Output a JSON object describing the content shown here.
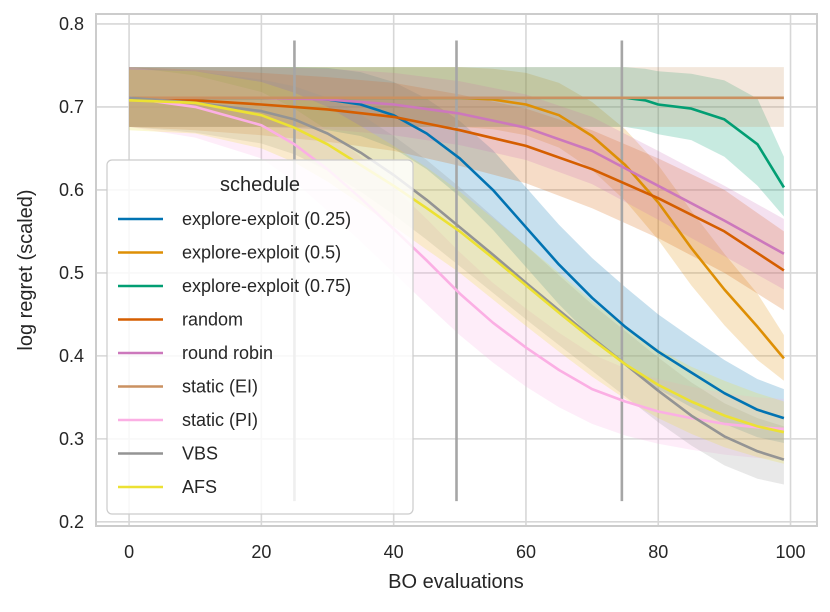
{
  "chart_data": {
    "type": "line",
    "xlabel": "BO evaluations",
    "ylabel": "log regret (scaled)",
    "xlim": [
      -5,
      104
    ],
    "ylim": [
      0.195,
      0.812
    ],
    "xticks": [
      0,
      20,
      40,
      60,
      80,
      100
    ],
    "xtick_labels": [
      "0",
      "20",
      "40",
      "60",
      "80",
      "100"
    ],
    "yticks": [
      0.2,
      0.3,
      0.4,
      0.5,
      0.6,
      0.7,
      0.8
    ],
    "ytick_labels": [
      "0.2",
      "0.3",
      "0.4",
      "0.5",
      "0.6",
      "0.7",
      "0.8"
    ],
    "grid": true,
    "legend": {
      "title": "schedule",
      "position": "lower-left"
    },
    "vlines": [
      {
        "x": 25,
        "ymin": 0.225,
        "ymax": 0.78
      },
      {
        "x": 49.5,
        "ymin": 0.225,
        "ymax": 0.78
      },
      {
        "x": 74.5,
        "ymin": 0.225,
        "ymax": 0.78
      }
    ],
    "series": [
      {
        "name": "explore-exploit (0.25)",
        "color": "#0173b2",
        "x": [
          0,
          10,
          20,
          25,
          30,
          35,
          40,
          45,
          50,
          55,
          60,
          65,
          70,
          75,
          80,
          85,
          90,
          95,
          99
        ],
        "y": [
          0.711,
          0.711,
          0.711,
          0.711,
          0.709,
          0.703,
          0.69,
          0.668,
          0.638,
          0.6,
          0.555,
          0.51,
          0.47,
          0.435,
          0.405,
          0.38,
          0.355,
          0.335,
          0.325
        ],
        "lower": [
          0.676,
          0.676,
          0.676,
          0.675,
          0.672,
          0.665,
          0.65,
          0.625,
          0.592,
          0.552,
          0.507,
          0.462,
          0.422,
          0.388,
          0.36,
          0.338,
          0.318,
          0.302,
          0.295
        ],
        "upper": [
          0.748,
          0.748,
          0.748,
          0.748,
          0.747,
          0.742,
          0.73,
          0.71,
          0.683,
          0.648,
          0.603,
          0.558,
          0.518,
          0.483,
          0.45,
          0.422,
          0.395,
          0.372,
          0.36
        ]
      },
      {
        "name": "explore-exploit (0.5)",
        "color": "#de8f05",
        "x": [
          0,
          10,
          20,
          30,
          40,
          50,
          55,
          60,
          65,
          70,
          75,
          80,
          85,
          90,
          95,
          99
        ],
        "y": [
          0.711,
          0.711,
          0.711,
          0.711,
          0.711,
          0.711,
          0.709,
          0.703,
          0.69,
          0.665,
          0.63,
          0.585,
          0.53,
          0.48,
          0.435,
          0.397
        ],
        "lower": [
          0.676,
          0.676,
          0.676,
          0.676,
          0.676,
          0.676,
          0.673,
          0.666,
          0.651,
          0.624,
          0.587,
          0.54,
          0.485,
          0.437,
          0.395,
          0.37
        ],
        "upper": [
          0.748,
          0.748,
          0.748,
          0.748,
          0.748,
          0.748,
          0.746,
          0.741,
          0.729,
          0.706,
          0.673,
          0.63,
          0.575,
          0.523,
          0.475,
          0.425
        ]
      },
      {
        "name": "explore-exploit (0.75)",
        "color": "#029e73",
        "x": [
          0,
          20,
          40,
          60,
          75,
          78,
          80,
          85,
          90,
          95,
          99
        ],
        "y": [
          0.711,
          0.711,
          0.711,
          0.711,
          0.711,
          0.708,
          0.703,
          0.698,
          0.685,
          0.655,
          0.603
        ],
        "lower": [
          0.676,
          0.676,
          0.676,
          0.676,
          0.676,
          0.672,
          0.667,
          0.66,
          0.64,
          0.605,
          0.568
        ],
        "upper": [
          0.748,
          0.748,
          0.748,
          0.748,
          0.748,
          0.746,
          0.743,
          0.74,
          0.732,
          0.71,
          0.64
        ]
      },
      {
        "name": "random",
        "color": "#d55e00",
        "x": [
          0,
          10,
          20,
          30,
          40,
          50,
          60,
          70,
          80,
          90,
          99
        ],
        "y": [
          0.711,
          0.708,
          0.703,
          0.697,
          0.688,
          0.672,
          0.653,
          0.625,
          0.59,
          0.55,
          0.503
        ],
        "lower": [
          0.676,
          0.672,
          0.666,
          0.658,
          0.647,
          0.629,
          0.608,
          0.578,
          0.542,
          0.5,
          0.455
        ],
        "upper": [
          0.748,
          0.745,
          0.741,
          0.736,
          0.729,
          0.715,
          0.698,
          0.672,
          0.638,
          0.6,
          0.55
        ]
      },
      {
        "name": "round robin",
        "color": "#cc78bc",
        "x": [
          0,
          10,
          20,
          30,
          40,
          50,
          60,
          70,
          80,
          90,
          99
        ],
        "y": [
          0.711,
          0.711,
          0.711,
          0.709,
          0.703,
          0.692,
          0.675,
          0.647,
          0.605,
          0.563,
          0.523
        ],
        "lower": [
          0.676,
          0.676,
          0.676,
          0.673,
          0.666,
          0.654,
          0.636,
          0.607,
          0.564,
          0.52,
          0.48
        ],
        "upper": [
          0.748,
          0.748,
          0.748,
          0.746,
          0.741,
          0.731,
          0.715,
          0.688,
          0.647,
          0.605,
          0.565
        ]
      },
      {
        "name": "static (EI)",
        "color": "#ca9161",
        "x": [
          0,
          99
        ],
        "y": [
          0.711,
          0.711
        ],
        "lower": [
          0.676,
          0.676
        ],
        "upper": [
          0.748,
          0.748
        ]
      },
      {
        "name": "static (PI)",
        "color": "#fbafe4",
        "x": [
          0,
          10,
          20,
          25,
          30,
          35,
          40,
          45,
          50,
          55,
          60,
          65,
          70,
          75,
          80,
          85,
          90,
          95,
          99
        ],
        "y": [
          0.711,
          0.7,
          0.678,
          0.655,
          0.625,
          0.59,
          0.553,
          0.515,
          0.475,
          0.44,
          0.41,
          0.383,
          0.36,
          0.345,
          0.333,
          0.325,
          0.318,
          0.314,
          0.312
        ],
        "lower": [
          0.676,
          0.663,
          0.638,
          0.61,
          0.575,
          0.538,
          0.5,
          0.462,
          0.425,
          0.392,
          0.363,
          0.338,
          0.318,
          0.304,
          0.294,
          0.287,
          0.281,
          0.277,
          0.275
        ],
        "upper": [
          0.748,
          0.738,
          0.718,
          0.698,
          0.672,
          0.64,
          0.603,
          0.565,
          0.525,
          0.488,
          0.457,
          0.428,
          0.402,
          0.385,
          0.372,
          0.363,
          0.355,
          0.35,
          0.348
        ]
      },
      {
        "name": "VBS",
        "color": "#949494",
        "x": [
          0,
          10,
          20,
          25,
          30,
          35,
          40,
          45,
          50,
          55,
          60,
          65,
          70,
          75,
          80,
          85,
          90,
          95,
          99
        ],
        "y": [
          0.711,
          0.705,
          0.695,
          0.685,
          0.668,
          0.645,
          0.618,
          0.588,
          0.555,
          0.522,
          0.488,
          0.455,
          0.422,
          0.39,
          0.358,
          0.328,
          0.303,
          0.285,
          0.275
        ],
        "lower": [
          0.676,
          0.669,
          0.656,
          0.643,
          0.623,
          0.598,
          0.57,
          0.54,
          0.508,
          0.476,
          0.444,
          0.413,
          0.382,
          0.351,
          0.32,
          0.292,
          0.268,
          0.252,
          0.245
        ],
        "upper": [
          0.748,
          0.743,
          0.733,
          0.725,
          0.711,
          0.691,
          0.665,
          0.636,
          0.603,
          0.568,
          0.533,
          0.497,
          0.462,
          0.43,
          0.398,
          0.368,
          0.343,
          0.325,
          0.315
        ]
      },
      {
        "name": "AFS",
        "color": "#ece133",
        "x": [
          0,
          10,
          20,
          25,
          30,
          35,
          40,
          45,
          50,
          55,
          60,
          65,
          70,
          75,
          80,
          85,
          90,
          95,
          99
        ],
        "y": [
          0.708,
          0.705,
          0.69,
          0.675,
          0.655,
          0.63,
          0.605,
          0.578,
          0.55,
          0.518,
          0.485,
          0.452,
          0.42,
          0.39,
          0.365,
          0.345,
          0.328,
          0.315,
          0.308
        ],
        "lower": [
          0.672,
          0.668,
          0.65,
          0.633,
          0.61,
          0.583,
          0.556,
          0.528,
          0.5,
          0.468,
          0.436,
          0.405,
          0.375,
          0.348,
          0.325,
          0.306,
          0.29,
          0.278,
          0.27
        ],
        "upper": [
          0.745,
          0.743,
          0.73,
          0.717,
          0.7,
          0.677,
          0.653,
          0.627,
          0.598,
          0.566,
          0.533,
          0.5,
          0.466,
          0.435,
          0.408,
          0.387,
          0.37,
          0.355,
          0.345
        ]
      }
    ]
  }
}
